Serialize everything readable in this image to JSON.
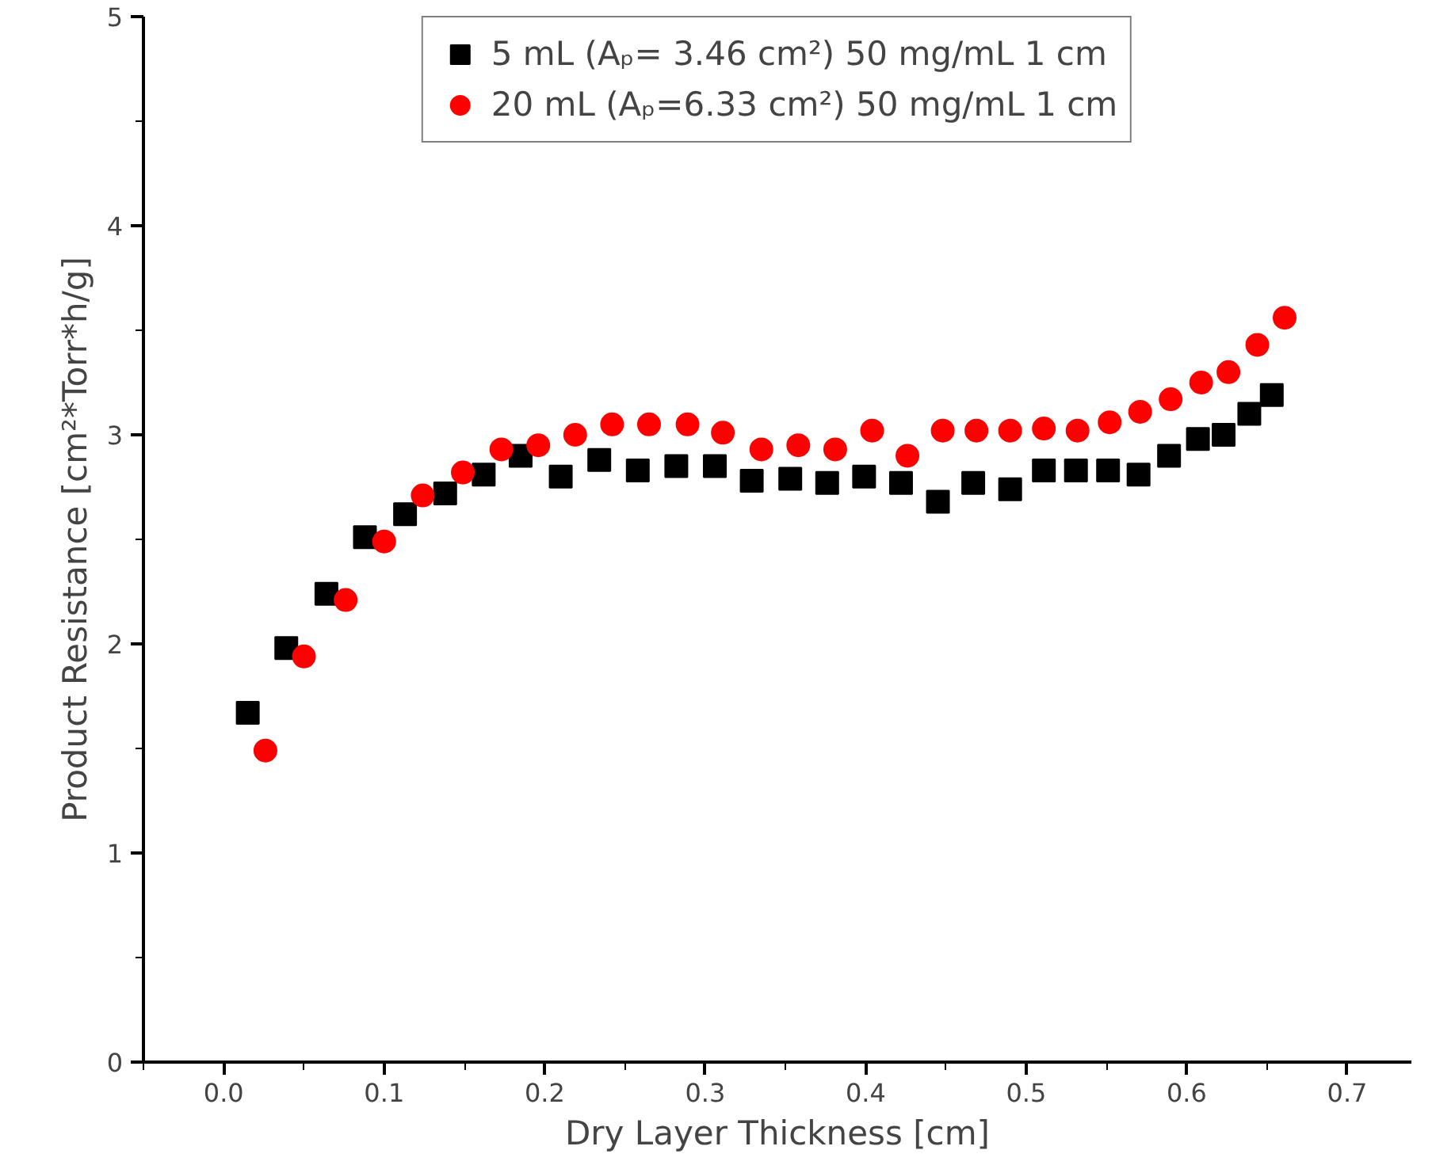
{
  "chart_data": {
    "type": "scatter",
    "xlabel": "Dry Layer Thickness [cm]",
    "ylabel": "Product Resistance [cm²*Torr*h/g]",
    "xlim": [
      -0.05,
      0.74
    ],
    "ylim": [
      0,
      5
    ],
    "xticks": [
      {
        "value": -0.05,
        "label": null
      },
      {
        "value": 0.0,
        "label": "0.0"
      },
      {
        "value": 0.05,
        "label": null
      },
      {
        "value": 0.1,
        "label": "0.1"
      },
      {
        "value": 0.15,
        "label": null
      },
      {
        "value": 0.2,
        "label": "0.2"
      },
      {
        "value": 0.25,
        "label": null
      },
      {
        "value": 0.3,
        "label": "0.3"
      },
      {
        "value": 0.35,
        "label": null
      },
      {
        "value": 0.4,
        "label": "0.4"
      },
      {
        "value": 0.45,
        "label": null
      },
      {
        "value": 0.5,
        "label": "0.5"
      },
      {
        "value": 0.55,
        "label": null
      },
      {
        "value": 0.6,
        "label": "0.6"
      },
      {
        "value": 0.65,
        "label": null
      },
      {
        "value": 0.7,
        "label": "0.7"
      }
    ],
    "yticks": [
      0,
      {
        "value": 0.5,
        "label": null
      },
      1,
      {
        "value": 1.5,
        "label": null
      },
      2,
      {
        "value": 2.5,
        "label": null
      },
      3,
      {
        "value": 3.5,
        "label": null
      },
      4,
      {
        "value": 4.5,
        "label": null
      },
      5
    ],
    "grid": false,
    "legend": "top",
    "series": [
      {
        "name": "5 mL (Aₚ= 3.46 cm²) 50 mg/mL 1 cm",
        "color": "#000000",
        "marker": "square",
        "x": [
          0.015,
          0.039,
          0.064,
          0.088,
          0.113,
          0.138,
          0.162,
          0.185,
          0.21,
          0.234,
          0.258,
          0.282,
          0.306,
          0.329,
          0.353,
          0.376,
          0.399,
          0.422,
          0.445,
          0.467,
          0.49,
          0.511,
          0.531,
          0.551,
          0.57,
          0.589,
          0.607,
          0.623,
          0.639,
          0.653
        ],
        "values": [
          1.67,
          1.98,
          2.24,
          2.51,
          2.62,
          2.72,
          2.81,
          2.9,
          2.8,
          2.88,
          2.83,
          2.85,
          2.85,
          2.78,
          2.79,
          2.77,
          2.8,
          2.77,
          2.68,
          2.77,
          2.74,
          2.83,
          2.83,
          2.83,
          2.81,
          2.9,
          2.98,
          3.0,
          3.1,
          3.19
        ]
      },
      {
        "name": "20 mL (Aₚ=6.33 cm²) 50 mg/mL 1 cm",
        "color": "#ff0000",
        "marker": "circle",
        "x": [
          0.026,
          0.05,
          0.076,
          0.1,
          0.124,
          0.149,
          0.173,
          0.196,
          0.219,
          0.242,
          0.265,
          0.289,
          0.311,
          0.335,
          0.358,
          0.381,
          0.404,
          0.426,
          0.448,
          0.469,
          0.49,
          0.511,
          0.532,
          0.552,
          0.571,
          0.59,
          0.609,
          0.626,
          0.644,
          0.661
        ],
        "values": [
          1.49,
          1.94,
          2.21,
          2.49,
          2.71,
          2.82,
          2.93,
          2.95,
          3.0,
          3.05,
          3.05,
          3.05,
          3.01,
          2.93,
          2.95,
          2.93,
          3.02,
          2.9,
          3.02,
          3.02,
          3.02,
          3.03,
          3.02,
          3.06,
          3.11,
          3.17,
          3.25,
          3.3,
          3.43,
          3.56
        ]
      }
    ]
  }
}
